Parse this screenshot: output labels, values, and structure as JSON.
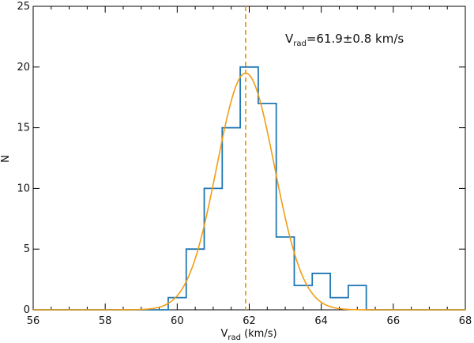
{
  "chart_data": {
    "type": "histogram",
    "x": {
      "ticks": [
        56,
        58,
        60,
        62,
        64,
        66,
        68
      ],
      "tick_labels": [
        "56",
        "58",
        "60",
        "62",
        "64",
        "66",
        "68"
      ],
      "range": [
        56,
        68
      ],
      "label": {
        "main": "V",
        "subscript": "rad",
        "suffix": " (km/s)"
      }
    },
    "y": {
      "ticks": [
        0,
        5,
        10,
        15,
        20,
        25
      ],
      "tick_labels": [
        "0",
        "5",
        "10",
        "15",
        "20",
        "25"
      ],
      "range": [
        0,
        25
      ],
      "label": "N"
    },
    "histogram": {
      "bins": [
        {
          "x0": 59.75,
          "x1": 60.25,
          "count": 1
        },
        {
          "x0": 60.25,
          "x1": 60.75,
          "count": 5
        },
        {
          "x0": 60.75,
          "x1": 61.25,
          "count": 10
        },
        {
          "x0": 61.25,
          "x1": 61.75,
          "count": 15
        },
        {
          "x0": 61.75,
          "x1": 62.25,
          "count": 20
        },
        {
          "x0": 62.25,
          "x1": 62.75,
          "count": 17
        },
        {
          "x0": 62.75,
          "x1": 63.25,
          "count": 6
        },
        {
          "x0": 63.25,
          "x1": 63.75,
          "count": 2
        },
        {
          "x0": 63.75,
          "x1": 64.25,
          "count": 3
        },
        {
          "x0": 64.25,
          "x1": 64.75,
          "count": 1
        },
        {
          "x0": 64.75,
          "x1": 65.25,
          "count": 2
        }
      ],
      "color": "#1f77b4"
    },
    "gaussian_fit": {
      "mean": 61.9,
      "sigma": 0.8,
      "amplitude": 19.5,
      "color": "#f39c12"
    },
    "mean_line": {
      "x": 61.9,
      "color": "#f39c12",
      "style": "dashed"
    },
    "annotation": {
      "main": "V",
      "subscript": "rad",
      "suffix": "=61.9±0.8 km/s"
    },
    "grid": false,
    "legend": "none"
  }
}
